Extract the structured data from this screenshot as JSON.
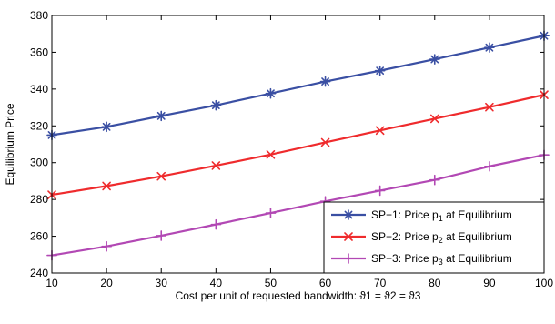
{
  "chart_data": {
    "type": "line",
    "xlabel_main": "Cost per unit of requested bandwidth: ",
    "xlabel_math": "ϑ1 = ϑ2 = ϑ3",
    "ylabel": "Equilibrium Price",
    "xlim": [
      10,
      100
    ],
    "ylim": [
      240,
      380
    ],
    "x_ticks": [
      10,
      20,
      30,
      40,
      50,
      60,
      70,
      80,
      90,
      100
    ],
    "y_ticks": [
      240,
      260,
      280,
      300,
      320,
      340,
      360,
      380
    ],
    "grid": false,
    "legend_position": "bottom-right",
    "x": [
      10,
      20,
      30,
      40,
      50,
      60,
      70,
      80,
      90,
      100
    ],
    "series": [
      {
        "name": "SP−1: Price p1 at Equilibrium",
        "legend_prefix": "SP−1: Price p",
        "legend_sub": "1",
        "legend_suffix": " at Equilibrium",
        "color": "#3a4fa3",
        "marker": "asterisk",
        "values": [
          315.0,
          319.5,
          325.4,
          331.2,
          337.6,
          344.1,
          350.0,
          356.2,
          362.6,
          369.0
        ]
      },
      {
        "name": "SP−2: Price p2 at Equilibrium",
        "legend_prefix": "SP−2: Price p",
        "legend_sub": "2",
        "legend_suffix": " at Equilibrium",
        "color": "#ef2b2d",
        "marker": "x",
        "values": [
          282.5,
          287.3,
          292.6,
          298.4,
          304.4,
          311.0,
          317.5,
          323.9,
          330.2,
          336.9
        ]
      },
      {
        "name": "SP−3: Price p3 at Equilibrium",
        "legend_prefix": "SP−3: Price p",
        "legend_sub": "3",
        "legend_suffix": " at Equilibrium",
        "color": "#b248b4",
        "marker": "plus",
        "values": [
          249.6,
          254.5,
          260.3,
          266.4,
          272.6,
          279.0,
          284.8,
          290.6,
          298.0,
          304.2
        ]
      }
    ]
  }
}
